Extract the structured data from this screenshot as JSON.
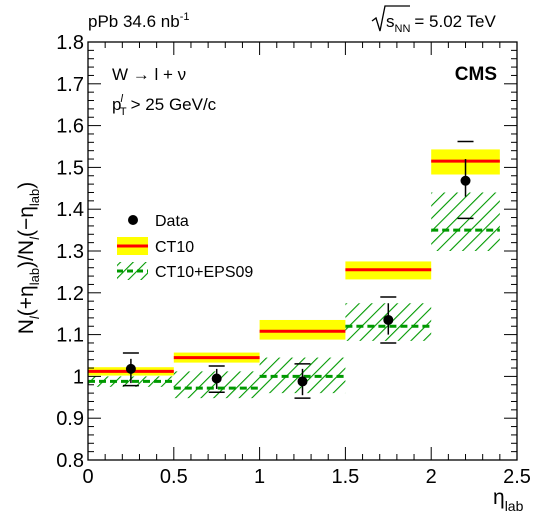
{
  "chart_data": {
    "type": "scatter",
    "header_left": "pPb 34.6 nb",
    "header_left_sup": "-1",
    "header_right_sym": "s",
    "header_right_sub": "NN",
    "header_right_value": "= 5.02 TeV",
    "experiment": "CMS",
    "process": "W → l + ν",
    "cut_p": "p",
    "cut_sup": "l",
    "cut_sub": "T",
    "cut_rest": "> 25 GeV/c",
    "ylabel": {
      "p1": "N",
      "p1_sub": "l",
      "p2": "(+η",
      "p2_sub": "lab",
      "p3": ")/N",
      "p3_sub": "l",
      "p4": "(−η",
      "p4_sub": "lab",
      "p5": ")"
    },
    "xlabel": "η",
    "xlabel_sub": "lab",
    "xlim": [
      0,
      2.5
    ],
    "ylim": [
      0.8,
      1.8
    ],
    "xticks": [
      "0",
      "0.5",
      "1",
      "1.5",
      "2",
      "2.5"
    ],
    "yticks": [
      "0.8",
      "0.9",
      "1",
      "1.1",
      "1.2",
      "1.3",
      "1.4",
      "1.5",
      "1.6",
      "1.7",
      "1.8"
    ],
    "legend": [
      {
        "key": "data",
        "label": "Data"
      },
      {
        "key": "ct10",
        "label": "CT10"
      },
      {
        "key": "eps09",
        "label": "CT10+EPS09"
      }
    ],
    "colors": {
      "band_ct10": "#ffff00",
      "line_ct10": "#ff0000",
      "band_eps09": "#009900",
      "marker": "#000000"
    },
    "bins": [
      {
        "x_lo": 0.0,
        "x_hi": 0.5,
        "x": 0.25,
        "y": 1.018,
        "stat_lo": 0.984,
        "stat_hi": 1.042,
        "syst_lo": 0.978,
        "syst_hi": 1.056,
        "ct10": 1.012,
        "ct10_lo": 1.002,
        "ct10_hi": 1.022,
        "eps09": 0.988,
        "eps09_lo": 0.975,
        "eps09_hi": 1.0
      },
      {
        "x_lo": 0.5,
        "x_hi": 1.0,
        "x": 0.75,
        "y": 0.995,
        "stat_lo": 0.97,
        "stat_hi": 1.018,
        "syst_lo": 0.962,
        "syst_hi": 1.025,
        "ct10": 1.045,
        "ct10_lo": 1.033,
        "ct10_hi": 1.057,
        "eps09": 0.972,
        "eps09_lo": 0.948,
        "eps09_hi": 1.012
      },
      {
        "x_lo": 1.0,
        "x_hi": 1.5,
        "x": 1.25,
        "y": 0.988,
        "stat_lo": 0.955,
        "stat_hi": 1.018,
        "syst_lo": 0.948,
        "syst_hi": 1.03,
        "ct10": 1.108,
        "ct10_lo": 1.088,
        "ct10_hi": 1.135,
        "eps09": 1.0,
        "eps09_lo": 0.96,
        "eps09_hi": 1.045
      },
      {
        "x_lo": 1.5,
        "x_hi": 2.0,
        "x": 1.75,
        "y": 1.135,
        "stat_lo": 1.1,
        "stat_hi": 1.175,
        "syst_lo": 1.08,
        "syst_hi": 1.19,
        "ct10": 1.255,
        "ct10_lo": 1.232,
        "ct10_hi": 1.275,
        "eps09": 1.12,
        "eps09_lo": 1.085,
        "eps09_hi": 1.175
      },
      {
        "x_lo": 2.0,
        "x_hi": 2.4,
        "x": 2.2,
        "y": 1.468,
        "stat_lo": 1.43,
        "stat_hi": 1.52,
        "syst_lo": 1.378,
        "syst_hi": 1.562,
        "ct10": 1.515,
        "ct10_lo": 1.483,
        "ct10_hi": 1.543,
        "eps09": 1.35,
        "eps09_lo": 1.3,
        "eps09_hi": 1.44
      }
    ]
  }
}
